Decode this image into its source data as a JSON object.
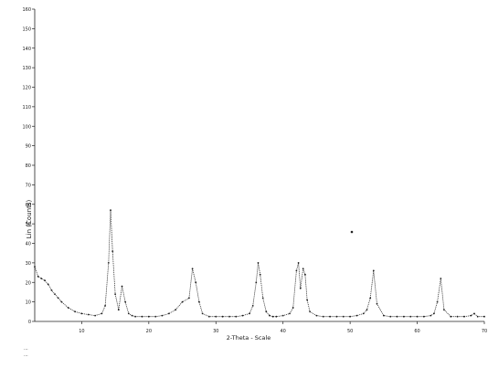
{
  "chart_data": {
    "type": "line",
    "title": "",
    "xlabel": "2-Theta - Scale",
    "ylabel": "Lin (Counts)",
    "xlim": [
      3,
      70
    ],
    "ylim": [
      0,
      160
    ],
    "yticks": [
      0,
      10,
      20,
      30,
      40,
      50,
      60,
      70,
      80,
      90,
      100,
      110,
      120,
      130,
      140,
      150,
      160
    ],
    "xticks": [
      10,
      20,
      30,
      40,
      50,
      60,
      70
    ],
    "grid": false,
    "legend": "none",
    "colors": {
      "background": "#ffffff",
      "trace": "#3a3a3a",
      "markers": "#1a1a1a"
    },
    "series": [
      {
        "x": [
          3,
          3.5,
          4,
          4.5,
          5,
          5.5,
          6,
          6.5,
          7,
          8,
          9,
          10,
          11,
          12,
          13,
          13.5,
          14,
          14.3,
          14.6,
          15,
          15.5,
          16,
          16.5,
          17,
          17.5,
          18,
          19,
          20,
          21,
          22,
          23,
          24,
          25,
          26,
          26.5,
          27,
          27.5,
          28,
          29,
          30,
          31,
          32,
          33,
          34,
          35,
          35.5,
          36,
          36.3,
          36.6,
          37,
          37.5,
          38,
          38.5,
          39,
          40,
          41,
          41.5,
          42,
          42.3,
          42.6,
          43,
          43.3,
          43.6,
          44,
          45,
          46,
          47,
          48,
          49,
          50,
          51,
          52,
          52.5,
          53,
          53.5,
          54,
          55,
          56,
          57,
          58,
          59,
          60,
          61,
          62,
          62.5,
          63,
          63.5,
          64,
          65,
          66,
          67,
          68,
          68.5,
          69,
          70
        ],
        "y": [
          28,
          23,
          22,
          21,
          19,
          16,
          14,
          12,
          10,
          7,
          5,
          4,
          3.5,
          3,
          4,
          8,
          30,
          57,
          36,
          14,
          6,
          18,
          10,
          4,
          3,
          2.5,
          2.5,
          2.5,
          2.5,
          3,
          4,
          6,
          10,
          12,
          27,
          20,
          10,
          4,
          2.5,
          2.5,
          2.5,
          2.5,
          2.5,
          3,
          4,
          8,
          20,
          30,
          24,
          12,
          5,
          3,
          2.5,
          2.5,
          3,
          4,
          7,
          26,
          30,
          17,
          27,
          24,
          11,
          5,
          3,
          2.5,
          2.5,
          2.5,
          2.5,
          2.5,
          3,
          4,
          6,
          12,
          26,
          9,
          3,
          2.5,
          2.5,
          2.5,
          2.5,
          2.5,
          2.5,
          3,
          4,
          10,
          22,
          6,
          2.5,
          2.5,
          2.5,
          3,
          4,
          2.5,
          2.5
        ]
      }
    ]
  },
  "footer": {
    "line1": "...",
    "line2": "..."
  }
}
